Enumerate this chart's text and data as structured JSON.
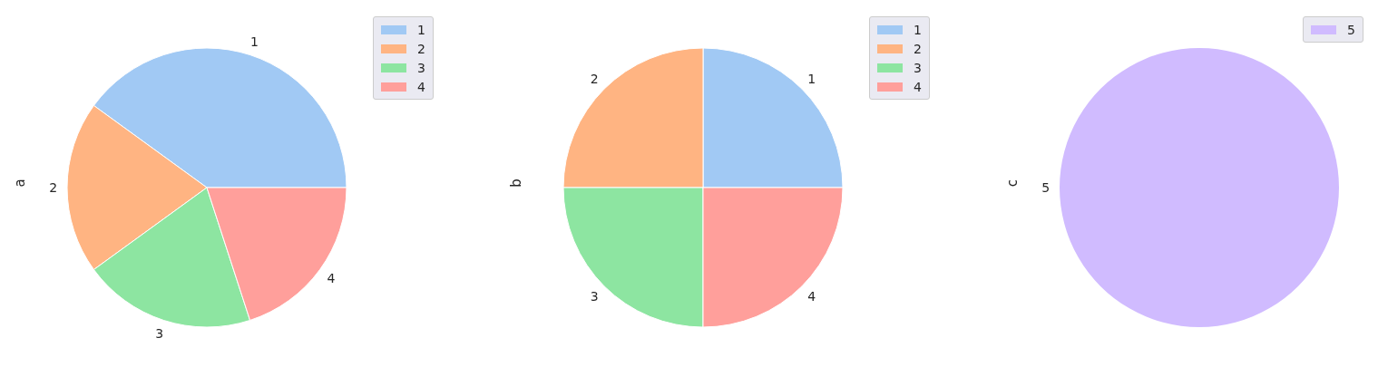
{
  "chart_data": [
    {
      "type": "pie",
      "ylabel": "a",
      "categories": [
        "1",
        "2",
        "3",
        "4"
      ],
      "values": [
        40,
        20,
        20,
        20
      ],
      "colors": [
        "#a1c9f4",
        "#ffb482",
        "#8de5a1",
        "#ff9f9b"
      ],
      "legend": "top right"
    },
    {
      "type": "pie",
      "ylabel": "b",
      "categories": [
        "1",
        "2",
        "3",
        "4"
      ],
      "values": [
        25,
        25,
        25,
        25
      ],
      "colors": [
        "#a1c9f4",
        "#ffb482",
        "#8de5a1",
        "#ff9f9b"
      ],
      "legend": "top right"
    },
    {
      "type": "pie",
      "ylabel": "c",
      "categories": [
        "5"
      ],
      "values": [
        100
      ],
      "colors": [
        "#d0bbff"
      ],
      "legend": "top right"
    }
  ]
}
